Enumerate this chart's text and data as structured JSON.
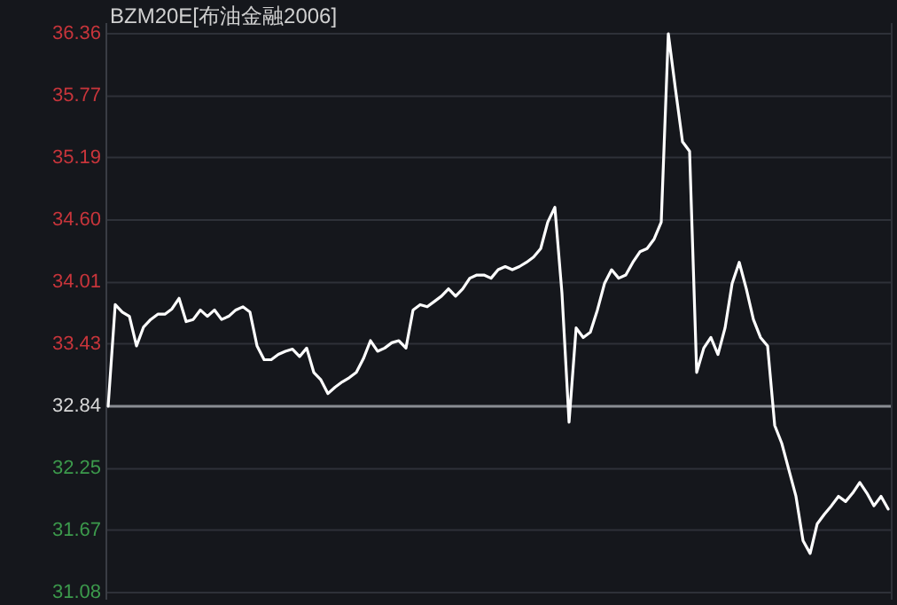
{
  "chart_data": {
    "type": "line",
    "title": "BZM20E[布油金融2006]",
    "categories": [
      null,
      null,
      null,
      null,
      null,
      null,
      null,
      null,
      null,
      null,
      null,
      null,
      null,
      null,
      null,
      null,
      null,
      null,
      null,
      null,
      null,
      null,
      null,
      null,
      null,
      null,
      null,
      null,
      null,
      null,
      null,
      null,
      null,
      null,
      null,
      null,
      null,
      null,
      null,
      null,
      null,
      null,
      null,
      null,
      null,
      null,
      null,
      null,
      null,
      null,
      null,
      null,
      null,
      null,
      null,
      null,
      null,
      null,
      null,
      null,
      null,
      null,
      null,
      null,
      null,
      null,
      null,
      null,
      null,
      null,
      null,
      null,
      null,
      null,
      null,
      null,
      null,
      null,
      null,
      null,
      null,
      null,
      null,
      null,
      null,
      null,
      null,
      null,
      null,
      null,
      null,
      null,
      null,
      null,
      null,
      null,
      null,
      null,
      null,
      null,
      null,
      null,
      null,
      null,
      null,
      null,
      null,
      null,
      null,
      null,
      null
    ],
    "series": [
      {
        "color": "#ffffff",
        "values": [
          32.84,
          33.8,
          33.73,
          33.69,
          33.41,
          33.59,
          33.66,
          33.71,
          33.71,
          33.76,
          33.86,
          33.64,
          33.66,
          33.75,
          33.69,
          33.75,
          33.66,
          33.69,
          33.75,
          33.78,
          33.73,
          33.41,
          33.28,
          33.28,
          33.33,
          33.36,
          33.38,
          33.31,
          33.39,
          33.16,
          33.09,
          32.96,
          33.02,
          33.07,
          33.11,
          33.16,
          33.29,
          33.46,
          33.36,
          33.39,
          33.44,
          33.46,
          33.39,
          33.75,
          33.8,
          33.78,
          33.83,
          33.88,
          33.95,
          33.88,
          33.95,
          34.05,
          34.08,
          34.08,
          34.05,
          34.13,
          34.16,
          34.13,
          34.16,
          34.2,
          34.25,
          34.33,
          34.58,
          34.72,
          33.91,
          32.69,
          33.58,
          33.49,
          33.54,
          33.75,
          34.0,
          34.13,
          34.05,
          34.08,
          34.2,
          34.3,
          34.33,
          34.42,
          34.58,
          36.36,
          35.84,
          35.34,
          35.25,
          33.16,
          33.39,
          33.49,
          33.33,
          33.58,
          34.0,
          34.2,
          33.95,
          33.66,
          33.49,
          33.41,
          32.66,
          32.49,
          32.24,
          31.99,
          31.57,
          31.45,
          31.73,
          31.82,
          31.9,
          31.99,
          31.94,
          32.02,
          32.12,
          32.02,
          31.9,
          31.99,
          31.87
        ]
      }
    ],
    "ylim": [
      31.08,
      36.36
    ],
    "yticks": [
      31.08,
      31.67,
      32.25,
      32.84,
      33.43,
      34.01,
      {
        "value": 34.6,
        "label": "34.60"
      },
      35.19,
      35.77,
      36.36
    ],
    "ref_lines": [
      {
        "axis": "y",
        "value": 32.84,
        "color": "#8a8d93"
      }
    ],
    "grid": "y",
    "marker": "none",
    "line_style": "solid"
  }
}
